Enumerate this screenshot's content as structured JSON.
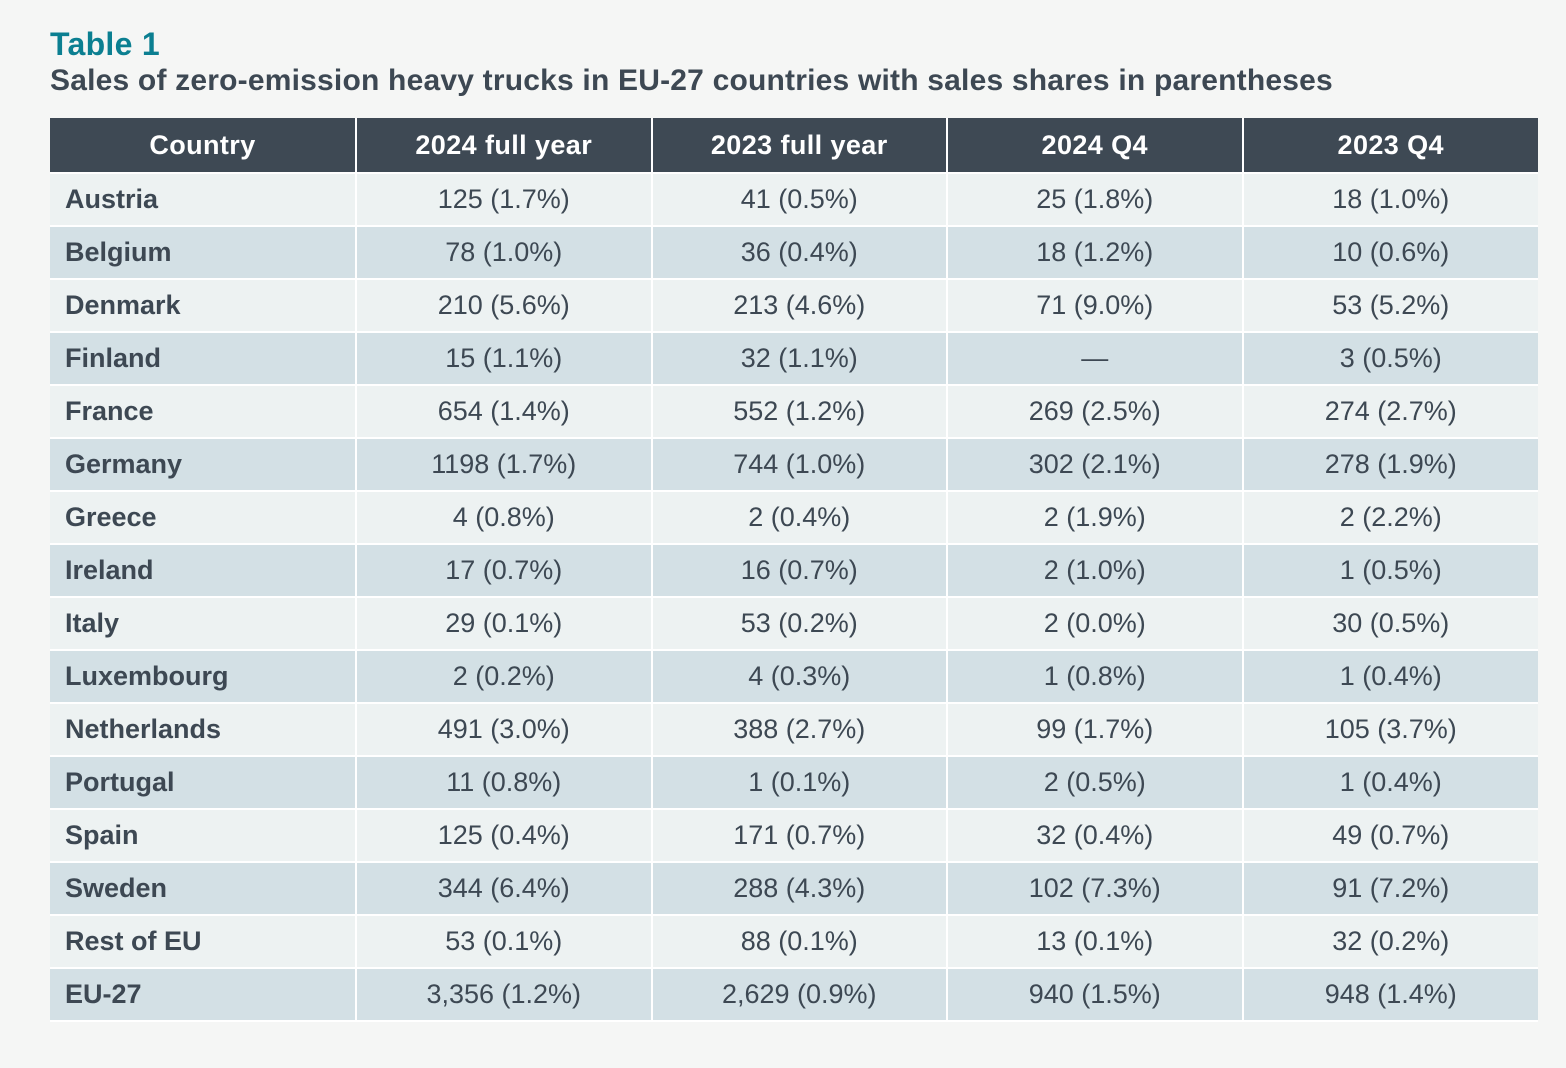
{
  "label": "Table 1",
  "title": "Sales of zero-emission heavy trucks in EU-27 countries with sales shares in parentheses",
  "headers": [
    "Country",
    "2024 full year",
    "2023 full year",
    "2024 Q4",
    "2023 Q4"
  ],
  "rows": [
    [
      "Austria",
      "125 (1.7%)",
      "41 (0.5%)",
      "25 (1.8%)",
      "18 (1.0%)"
    ],
    [
      "Belgium",
      "78 (1.0%)",
      "36 (0.4%)",
      "18 (1.2%)",
      "10 (0.6%)"
    ],
    [
      "Denmark",
      "210 (5.6%)",
      "213 (4.6%)",
      "71 (9.0%)",
      "53 (5.2%)"
    ],
    [
      "Finland",
      "15 (1.1%)",
      "32 (1.1%)",
      "—",
      "3 (0.5%)"
    ],
    [
      "France",
      "654 (1.4%)",
      "552 (1.2%)",
      "269 (2.5%)",
      "274 (2.7%)"
    ],
    [
      "Germany",
      "1198 (1.7%)",
      "744 (1.0%)",
      "302 (2.1%)",
      "278 (1.9%)"
    ],
    [
      "Greece",
      "4 (0.8%)",
      "2 (0.4%)",
      "2 (1.9%)",
      "2 (2.2%)"
    ],
    [
      "Ireland",
      "17 (0.7%)",
      "16 (0.7%)",
      "2 (1.0%)",
      "1 (0.5%)"
    ],
    [
      "Italy",
      "29 (0.1%)",
      "53 (0.2%)",
      "2 (0.0%)",
      "30 (0.5%)"
    ],
    [
      "Luxembourg",
      "2 (0.2%)",
      "4 (0.3%)",
      "1 (0.8%)",
      "1 (0.4%)"
    ],
    [
      "Netherlands",
      "491 (3.0%)",
      "388 (2.7%)",
      "99 (1.7%)",
      "105 (3.7%)"
    ],
    [
      "Portugal",
      "11 (0.8%)",
      "1 (0.1%)",
      "2 (0.5%)",
      "1 (0.4%)"
    ],
    [
      "Spain",
      "125 (0.4%)",
      "171 (0.7%)",
      "32 (0.4%)",
      "49 (0.7%)"
    ],
    [
      "Sweden",
      "344 (6.4%)",
      "288 (4.3%)",
      "102 (7.3%)",
      "91 (7.2%)"
    ],
    [
      "Rest of EU",
      "53 (0.1%)",
      "88 (0.1%)",
      "13 (0.1%)",
      "32 (0.2%)"
    ],
    [
      "EU-27",
      "3,356 (1.2%)",
      "2,629 (0.9%)",
      "940 (1.5%)",
      "948 (1.4%)"
    ]
  ],
  "colors": {
    "label": "#0b7f91",
    "title": "#3d4853",
    "header_bg": "#3e4954",
    "row_light": "#edf2f2",
    "row_dark": "#d3e0e5",
    "page_bg": "#f5f6f5"
  }
}
